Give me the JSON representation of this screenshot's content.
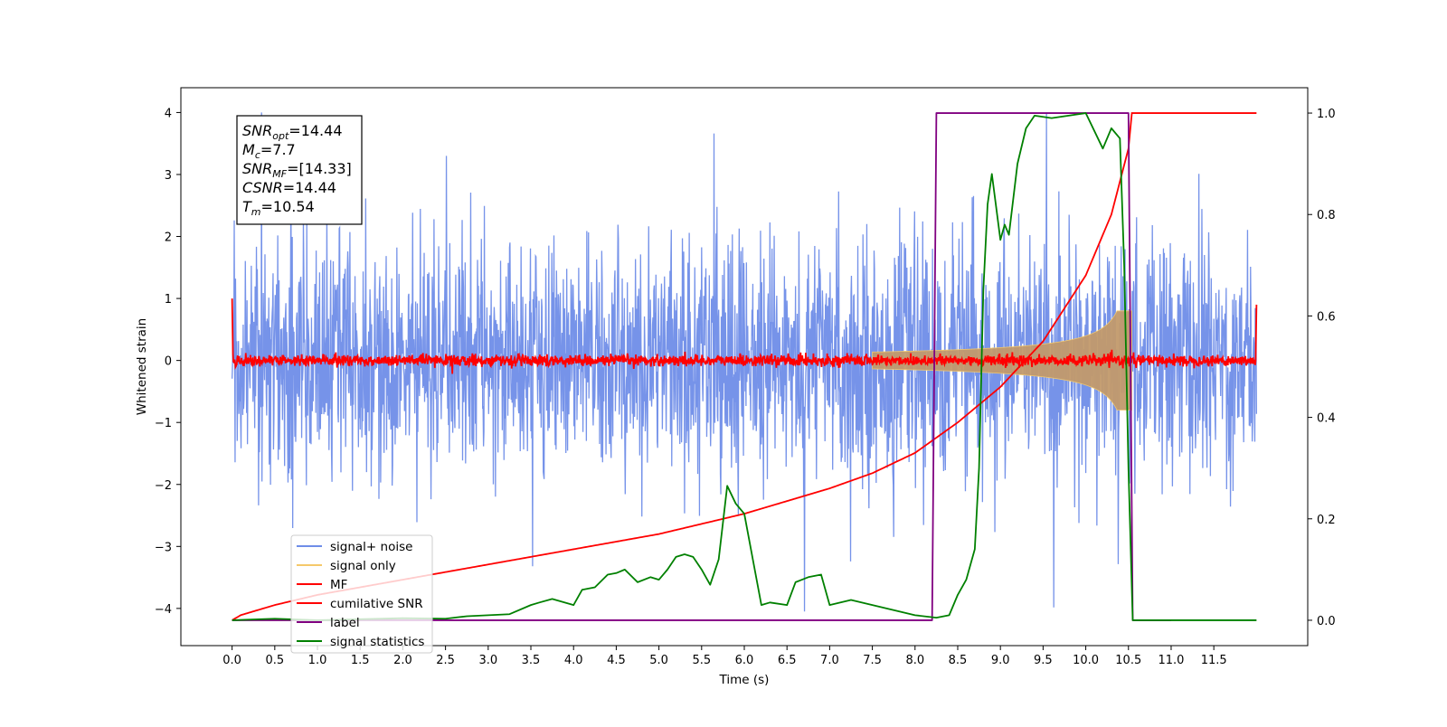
{
  "chart_data": {
    "type": "line",
    "xlabel": "Time (s)",
    "ylabel": "Whitened strain",
    "xlim": [
      -0.6,
      12.6
    ],
    "ylim": [
      -4.6,
      4.4
    ],
    "y2lim": [
      -0.05,
      1.05
    ],
    "x_ticks": [
      "0.0",
      "0.5",
      "1.0",
      "1.5",
      "2.0",
      "2.5",
      "3.0",
      "3.5",
      "4.0",
      "4.5",
      "5.0",
      "5.5",
      "6.0",
      "6.5",
      "7.0",
      "7.5",
      "8.0",
      "8.5",
      "9.0",
      "9.5",
      "10.0",
      "10.5",
      "11.0",
      "11.5"
    ],
    "x_tick_values": [
      0,
      0.5,
      1,
      1.5,
      2,
      2.5,
      3,
      3.5,
      4,
      4.5,
      5,
      5.5,
      6,
      6.5,
      7,
      7.5,
      8,
      8.5,
      9,
      9.5,
      10,
      10.5,
      11,
      11.5
    ],
    "y_ticks": [
      "4",
      "3",
      "2",
      "1",
      "0",
      "−1",
      "−2",
      "−3",
      "−4"
    ],
    "y_tick_values": [
      4,
      3,
      2,
      1,
      0,
      -1,
      -2,
      -3,
      -4
    ],
    "y2_ticks": [
      "1.0",
      "0.8",
      "0.6",
      "0.4",
      "0.2",
      "0.0"
    ],
    "y2_tick_values": [
      1.0,
      0.8,
      0.6,
      0.4,
      0.2,
      0.0
    ],
    "annotation": {
      "lines": [
        {
          "base": "SNR",
          "sub": "opt",
          "rest": "=14.44"
        },
        {
          "base": "M",
          "sub": "c",
          "rest": "=7.7"
        },
        {
          "base": "SNR",
          "sub": "MF",
          "rest": "=[14.33]"
        },
        {
          "base": "CSNR",
          "sub": "",
          "rest": "=14.44"
        },
        {
          "base": "T",
          "sub": "m",
          "rest": "=10.54"
        }
      ]
    },
    "series": [
      {
        "name": "signal+ noise",
        "color": "#6f8de8",
        "kind": "noise",
        "noise_amplitude": 2.2,
        "x_range": [
          0,
          12
        ]
      },
      {
        "name": "signal only",
        "color": "#f5c96a",
        "kind": "chirp",
        "x_range": [
          7.5,
          10.54
        ],
        "peak_amplitude": 0.8
      },
      {
        "name": "MF",
        "color": "#ff0000",
        "kind": "noise",
        "noise_amplitude": 0.12,
        "x_range": [
          0,
          12
        ]
      },
      {
        "name": "cumilative SNR",
        "color": "#ff0000",
        "axis": "right",
        "x": [
          0,
          0.1,
          0.5,
          1,
          2,
          3,
          4,
          5,
          6,
          7,
          7.5,
          8,
          8.5,
          9,
          9.5,
          10,
          10.3,
          10.5,
          10.54,
          12
        ],
        "values": [
          0.0,
          0.01,
          0.03,
          0.05,
          0.08,
          0.11,
          0.14,
          0.17,
          0.21,
          0.26,
          0.29,
          0.33,
          0.39,
          0.46,
          0.55,
          0.68,
          0.8,
          0.93,
          1.0,
          1.0
        ]
      },
      {
        "name": "label",
        "color": "#800080",
        "axis": "right",
        "x": [
          0,
          8.2,
          8.25,
          10.5,
          10.55,
          11.0
        ],
        "values": [
          0,
          0,
          1,
          1,
          0,
          0
        ]
      },
      {
        "name": "signal statistics",
        "color": "#008000",
        "axis": "right",
        "x": [
          0,
          0.5,
          1,
          1.5,
          2,
          2.5,
          2.75,
          3,
          3.25,
          3.5,
          3.6,
          3.75,
          4,
          4.1,
          4.25,
          4.4,
          4.5,
          4.6,
          4.75,
          4.9,
          5.0,
          5.1,
          5.2,
          5.3,
          5.4,
          5.5,
          5.6,
          5.7,
          5.8,
          5.9,
          6.0,
          6.1,
          6.2,
          6.3,
          6.5,
          6.6,
          6.75,
          6.9,
          7.0,
          7.25,
          7.5,
          7.75,
          8.0,
          8.25,
          8.4,
          8.5,
          8.6,
          8.7,
          8.75,
          8.8,
          8.85,
          8.9,
          9.0,
          9.05,
          9.1,
          9.2,
          9.3,
          9.4,
          9.6,
          9.8,
          10.0,
          10.2,
          10.3,
          10.4,
          10.45,
          10.5,
          10.55,
          11.0,
          12.0
        ],
        "values": [
          0.0,
          0.003,
          0.0,
          0.002,
          0.004,
          0.003,
          0.008,
          0.01,
          0.012,
          0.03,
          0.035,
          0.042,
          0.03,
          0.06,
          0.065,
          0.09,
          0.093,
          0.1,
          0.075,
          0.085,
          0.08,
          0.1,
          0.125,
          0.13,
          0.125,
          0.1,
          0.07,
          0.12,
          0.265,
          0.23,
          0.21,
          0.12,
          0.03,
          0.035,
          0.03,
          0.075,
          0.085,
          0.09,
          0.03,
          0.04,
          0.03,
          0.02,
          0.01,
          0.005,
          0.01,
          0.05,
          0.08,
          0.14,
          0.3,
          0.65,
          0.82,
          0.88,
          0.75,
          0.78,
          0.76,
          0.9,
          0.97,
          0.995,
          0.99,
          0.995,
          1.0,
          0.93,
          0.97,
          0.95,
          0.7,
          0.3,
          0.0,
          0.0,
          0.0
        ]
      }
    ],
    "legend": {
      "placement": "lower-left"
    }
  }
}
